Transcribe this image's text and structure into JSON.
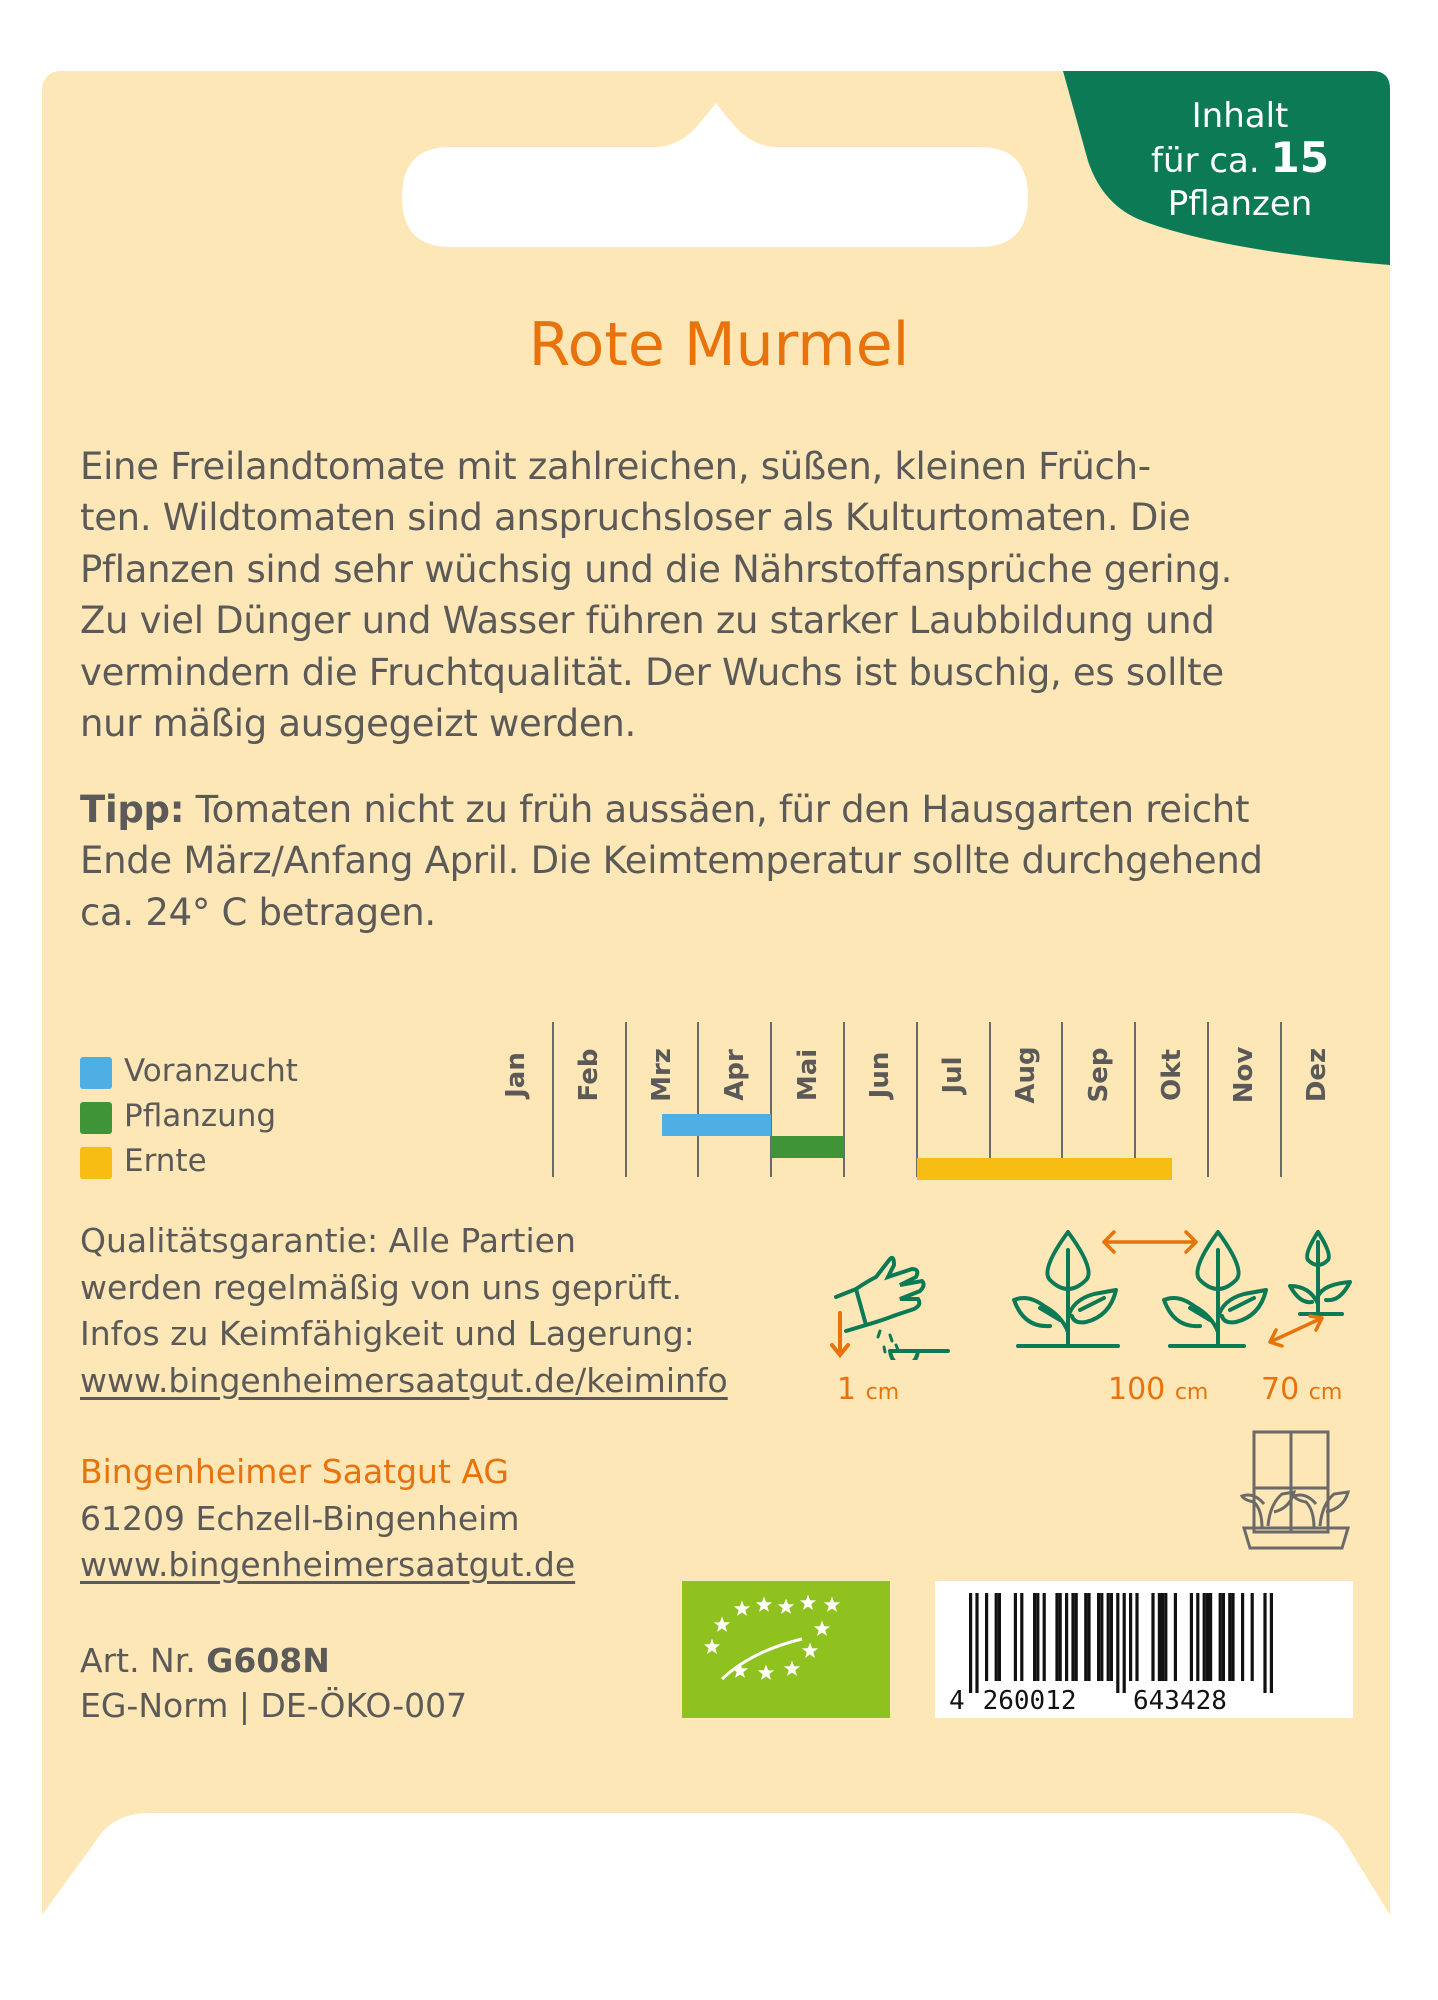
{
  "badge": {
    "line1": "Inhalt",
    "line2_prefix": "für ca.",
    "count": "15",
    "line3": "Pflanzen",
    "color": "#0b7a55"
  },
  "title": "Rote Murmel",
  "description": [
    "Eine Freilandtomate mit zahlreichen, süßen, kleinen Früch-",
    "ten. Wildtomaten sind anspruchsloser als Kulturtomaten. Die",
    "Pflanzen sind sehr wüchsig und die Nährstoffansprüche gering.",
    "Zu viel Dünger und Wasser führen zu starker Laubbildung und",
    "vermindern die Fruchtqualität. Der Wuchs ist buschig, es sollte",
    "nur mäßig ausgegeizt werden."
  ],
  "tip": {
    "label": "Tipp:",
    "lines": [
      " Tomaten nicht zu früh aussäen, für den Hausgarten reicht",
      "Ende März/Anfang April. Die Keimtemperatur sollte durchgehend",
      "ca. 24° C betragen."
    ]
  },
  "calendar": {
    "months": [
      "Jan",
      "Feb",
      "Mrz",
      "Apr",
      "Mai",
      "Jun",
      "Jul",
      "Aug",
      "Sep",
      "Okt",
      "Nov",
      "Dez"
    ],
    "legend": [
      {
        "label": "Voranzucht",
        "color": "#4faee3"
      },
      {
        "label": "Pflanzung",
        "color": "#3f9438"
      },
      {
        "label": "Ernte",
        "color": "#f7bd12"
      }
    ],
    "periods": [
      {
        "label": "Voranzucht",
        "start_month": 2.5,
        "end_month": 4
      },
      {
        "label": "Pflanzung",
        "start_month": 4,
        "end_month": 5
      },
      {
        "label": "Ernte",
        "start_month": 6,
        "end_month": 9.5
      }
    ]
  },
  "quality": [
    "Qualitätsgarantie: Alle Partien",
    "werden regelmäßig von uns geprüft.",
    "Infos zu Keimfähigkeit und Lagerung:",
    "www.bingenheimersaatgut.de/keiminfo"
  ],
  "sowing": {
    "depth_value": "1",
    "depth_unit": "cm",
    "row_value": "100",
    "row_unit": "cm",
    "plant_value": "70",
    "plant_unit": "cm"
  },
  "company": {
    "name": "Bingenheimer Saatgut AG",
    "address": "61209 Echzell-Bingenheim",
    "website": "www.bingenheimersaatgut.de"
  },
  "article": {
    "label": "Art. Nr.",
    "number": "G608N",
    "norm": "EG-Norm | DE-ÖKO-007"
  },
  "barcode": {
    "digits": "4260012643428"
  },
  "colors": {
    "background": "#fde7b7",
    "accent": "#e8730c",
    "icon_green": "#0b7a55",
    "organic_green": "#8fc11f"
  }
}
